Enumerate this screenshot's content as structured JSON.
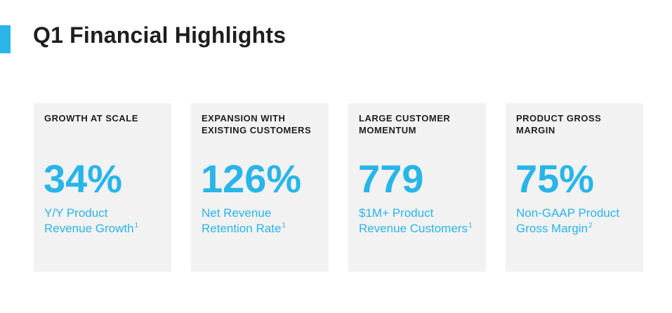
{
  "slide": {
    "title": "Q1 Financial Highlights",
    "accent_color": "#29b5e8"
  },
  "cards": [
    {
      "heading": "GROWTH AT SCALE",
      "value": "34%",
      "desc_line1": "Y/Y Product",
      "desc_line2": "Revenue Growth",
      "footnote": "1"
    },
    {
      "heading": "EXPANSION WITH EXISTING CUSTOMERS",
      "value": "126%",
      "desc_line1": "Net Revenue",
      "desc_line2": "Retention Rate",
      "footnote": "1"
    },
    {
      "heading": "LARGE CUSTOMER MOMENTUM",
      "value": "779",
      "desc_line1": "$1M+ Product",
      "desc_line2": "Revenue Customers",
      "footnote": "1"
    },
    {
      "heading": "PRODUCT GROSS MARGIN",
      "value": "75%",
      "desc_line1": "Non-GAAP Product",
      "desc_line2": "Gross Margin",
      "footnote": "2"
    }
  ]
}
